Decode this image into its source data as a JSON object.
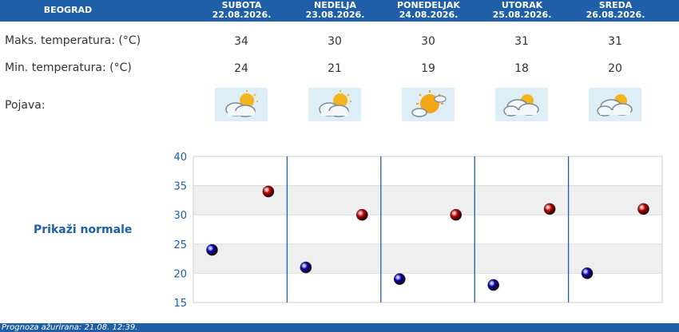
{
  "header": {
    "city": "BEOGRAD",
    "days": [
      {
        "name": "SUBOTA",
        "date": "22.08.2026."
      },
      {
        "name": "NEDELJA",
        "date": "23.08.2026."
      },
      {
        "name": "PONEDELJAK",
        "date": "24.08.2026."
      },
      {
        "name": "UTORAK",
        "date": "25.08.2026."
      },
      {
        "name": "SREDA",
        "date": "26.08.2026."
      }
    ]
  },
  "rows": {
    "max_label": "Maks. temperatura: (°C)",
    "min_label": "Min. temperatura: (°C)",
    "phen_label": "Pojava:",
    "max_values": [
      "34",
      "30",
      "30",
      "31",
      "31"
    ],
    "min_values": [
      "24",
      "21",
      "19",
      "18",
      "20"
    ],
    "icons": [
      "partly-cloudy-sun-icon",
      "partly-cloudy-sun-icon",
      "sunny-cloud-icon",
      "cloudy-sun-icon",
      "cloudy-sun-icon"
    ]
  },
  "normale_link": "Prikaži normale",
  "footer": "Prognoza ažurirana:  21.08. 12:39.",
  "colors": {
    "brand": "#1f5fa8",
    "max_marker": "#c00000",
    "min_marker": "#0000b0"
  },
  "chart_data": {
    "type": "scatter",
    "categories": [
      "SUBOTA",
      "NEDELJA",
      "PONEDELJAK",
      "UTORAK",
      "SREDA"
    ],
    "ylim": [
      15,
      40
    ],
    "yticks": [
      40,
      35,
      30,
      25,
      20,
      15
    ],
    "series": [
      {
        "values": [
          34,
          30,
          30,
          31,
          31
        ],
        "color": "#c00000"
      },
      {
        "values": [
          24,
          21,
          19,
          18,
          20
        ],
        "color": "#0000b0"
      }
    ],
    "grid": true
  }
}
